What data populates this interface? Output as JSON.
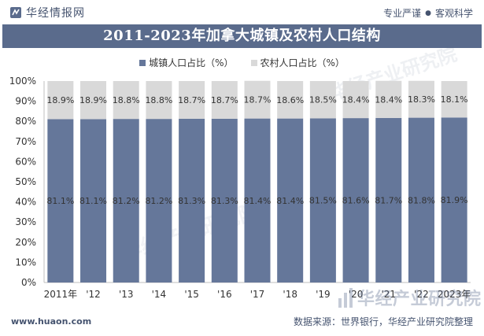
{
  "header": {
    "brand_name": "华经情报网",
    "slogan_left": "专业严谨",
    "slogan_right": "客观科学"
  },
  "title": "2011-2023年加拿大城镇及农村人口结构",
  "footer": {
    "url": "www.huaon.com",
    "source": "数据来源：世界银行，华经产业研究院整理",
    "watermark": "华经产业研究院"
  },
  "colors": {
    "urban": "#65779a",
    "rural": "#d9d9d9",
    "title_band": "#5a6b8c",
    "text": "#45536f"
  },
  "chart_data": {
    "type": "bar",
    "stacked": true,
    "categories": [
      "2011年",
      "'12",
      "'13",
      "'14",
      "'15",
      "'16",
      "'17",
      "'18",
      "'19",
      "'20",
      "'21",
      "'22",
      "2023年"
    ],
    "series": [
      {
        "name": "城镇人口占比（%）",
        "values": [
          81.1,
          81.1,
          81.2,
          81.2,
          81.3,
          81.3,
          81.4,
          81.4,
          81.5,
          81.6,
          81.7,
          81.8,
          81.9
        ],
        "labels": [
          "81.1%",
          "81.1%",
          "81.2%",
          "81.2%",
          "81.3%",
          "81.3%",
          "81.4%",
          "81.4%",
          "81.5%",
          "81.6%",
          "81.7%",
          "81.8%",
          "81.9%"
        ]
      },
      {
        "name": "农村人口占比（%）",
        "values": [
          18.9,
          18.9,
          18.8,
          18.8,
          18.7,
          18.7,
          18.7,
          18.6,
          18.5,
          18.4,
          18.4,
          18.3,
          18.1
        ],
        "labels": [
          "18.9%",
          "18.9%",
          "18.8%",
          "18.8%",
          "18.7%",
          "18.7%",
          "18.7%",
          "18.6%",
          "18.5%",
          "18.4%",
          "18.4%",
          "18.3%",
          "18.1%"
        ]
      }
    ],
    "y_ticks": [
      "0%",
      "10%",
      "20%",
      "30%",
      "40%",
      "50%",
      "60%",
      "70%",
      "80%",
      "90%",
      "100%"
    ],
    "ylim": [
      0,
      100
    ],
    "legend_position": "top-center",
    "grid": false
  }
}
